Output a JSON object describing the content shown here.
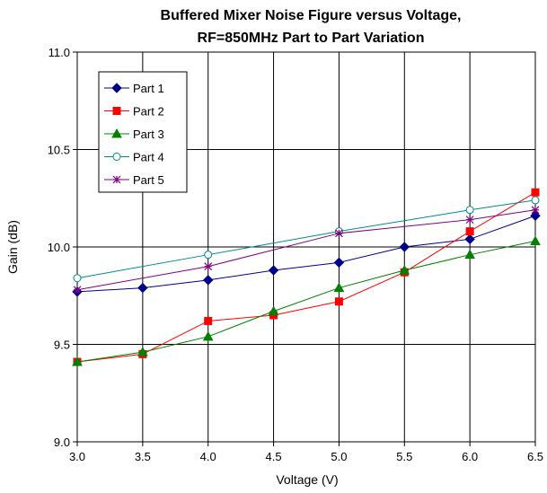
{
  "chart_data": {
    "type": "line",
    "title_line1": "Buffered Mixer Noise Figure versus Voltage,",
    "title_line2": "RF=850MHz Part to Part Variation",
    "xlabel": "Voltage (V)",
    "ylabel": "Gain (dB)",
    "xlim": [
      3.0,
      6.5
    ],
    "ylim": [
      9.0,
      11.0
    ],
    "xticks": [
      "3.0",
      "3.5",
      "4.0",
      "4.5",
      "5.0",
      "5.5",
      "6.0",
      "6.5"
    ],
    "yticks": [
      "9.0",
      "9.5",
      "10.0",
      "10.5",
      "11.0"
    ],
    "grid": true,
    "legend_position": "top-left",
    "series": [
      {
        "name": "Part 1",
        "color": "#00008B",
        "marker": "diamond",
        "x": [
          3.0,
          3.5,
          4.0,
          4.5,
          5.0,
          5.5,
          6.0,
          6.5
        ],
        "y": [
          9.77,
          9.79,
          9.83,
          9.88,
          9.92,
          10.0,
          10.04,
          10.16
        ]
      },
      {
        "name": "Part 2",
        "color": "#FF0000",
        "marker": "square",
        "x": [
          3.0,
          3.5,
          4.0,
          4.5,
          5.0,
          5.5,
          6.0,
          6.5
        ],
        "y": [
          9.41,
          9.45,
          9.62,
          9.65,
          9.72,
          9.87,
          10.08,
          10.28
        ]
      },
      {
        "name": "Part 3",
        "color": "#008000",
        "marker": "triangle",
        "x": [
          3.0,
          3.5,
          4.0,
          4.5,
          5.0,
          5.5,
          6.0,
          6.5
        ],
        "y": [
          9.41,
          9.46,
          9.54,
          9.67,
          9.79,
          9.88,
          9.96,
          10.03
        ]
      },
      {
        "name": "Part 4",
        "color": "#008B8B",
        "marker": "circle",
        "x": [
          3.0,
          4.0,
          5.0,
          6.0,
          6.5
        ],
        "y": [
          9.84,
          9.96,
          10.08,
          10.19,
          10.24
        ]
      },
      {
        "name": "Part 5",
        "color": "#800080",
        "marker": "star",
        "x": [
          3.0,
          4.0,
          5.0,
          6.0,
          6.5
        ],
        "y": [
          9.78,
          9.9,
          10.07,
          10.14,
          10.19
        ]
      }
    ]
  }
}
